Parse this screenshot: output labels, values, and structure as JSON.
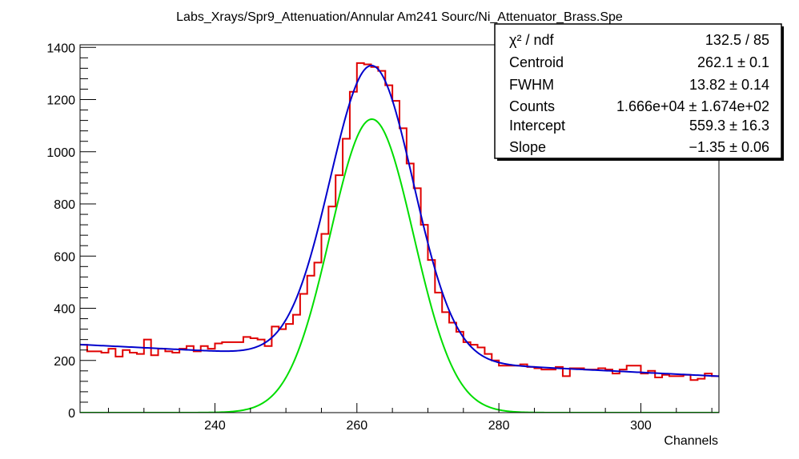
{
  "chart_data": {
    "type": "line",
    "title": "Labs_Xrays/Spr9_Attenuation/Annular Am241 Sourc/Ni_Attenuator_Brass.Spe",
    "xlabel": "Channels",
    "ylabel": "",
    "xlim": [
      221,
      311
    ],
    "ylim": [
      0,
      1410
    ],
    "x_ticks": [
      240,
      260,
      280,
      300
    ],
    "y_ticks": [
      0,
      200,
      400,
      600,
      800,
      1000,
      1200,
      1400
    ],
    "grid": false,
    "colors": {
      "histogram": "#e00000",
      "total_fit": "#0000cc",
      "gaussian": "#00dd00"
    },
    "series": [
      {
        "type": "step",
        "x": [
          221,
          222,
          223,
          224,
          225,
          226,
          227,
          228,
          229,
          230,
          231,
          232,
          233,
          234,
          235,
          236,
          237,
          238,
          239,
          240,
          241,
          242,
          243,
          244,
          245,
          246,
          247,
          248,
          249,
          250,
          251,
          252,
          253,
          254,
          255,
          256,
          257,
          258,
          259,
          260,
          261,
          262,
          263,
          264,
          265,
          266,
          267,
          268,
          269,
          270,
          271,
          272,
          273,
          274,
          275,
          276,
          277,
          278,
          279,
          280,
          281,
          282,
          283,
          284,
          285,
          286,
          287,
          288,
          289,
          290,
          291,
          292,
          293,
          294,
          295,
          296,
          297,
          298,
          299,
          300,
          301,
          302,
          303,
          304,
          305,
          306,
          307,
          308,
          309,
          310
        ],
        "values": [
          260,
          235,
          235,
          230,
          245,
          215,
          240,
          230,
          225,
          280,
          220,
          245,
          235,
          230,
          245,
          255,
          235,
          255,
          245,
          265,
          270,
          270,
          270,
          290,
          285,
          280,
          255,
          330,
          320,
          340,
          375,
          455,
          525,
          575,
          685,
          790,
          910,
          1050,
          1230,
          1340,
          1335,
          1325,
          1310,
          1255,
          1195,
          1090,
          955,
          860,
          720,
          585,
          460,
          385,
          345,
          310,
          270,
          260,
          250,
          225,
          200,
          180,
          180,
          180,
          185,
          175,
          170,
          165,
          165,
          175,
          140,
          170,
          170,
          165,
          165,
          170,
          165,
          150,
          165,
          180,
          180,
          150,
          160,
          135,
          145,
          140,
          140,
          145,
          125,
          130,
          150,
          140
        ]
      },
      {
        "type": "fit",
        "function": "gaussian + linear background",
        "centroid": 262.1,
        "fwhm": 13.82,
        "intercept": 559.3,
        "slope": -1.35
      },
      {
        "type": "fit",
        "function": "gaussian component",
        "centroid": 262.1,
        "fwhm": 13.82,
        "peak": 1125
      }
    ],
    "stats_box": [
      {
        "name": "χ² / ndf",
        "value": "132.5 / 85"
      },
      {
        "name": "Centroid",
        "value": "262.1 ± 0.1"
      },
      {
        "name": "FWHM",
        "value": "13.82 ± 0.14"
      },
      {
        "name": "Counts",
        "value": "1.666e+04 ± 1.674e+02"
      },
      {
        "name": "Intercept",
        "value": "559.3 ± 16.3"
      },
      {
        "name": "Slope",
        "value": "−1.35 ± 0.06"
      }
    ]
  }
}
